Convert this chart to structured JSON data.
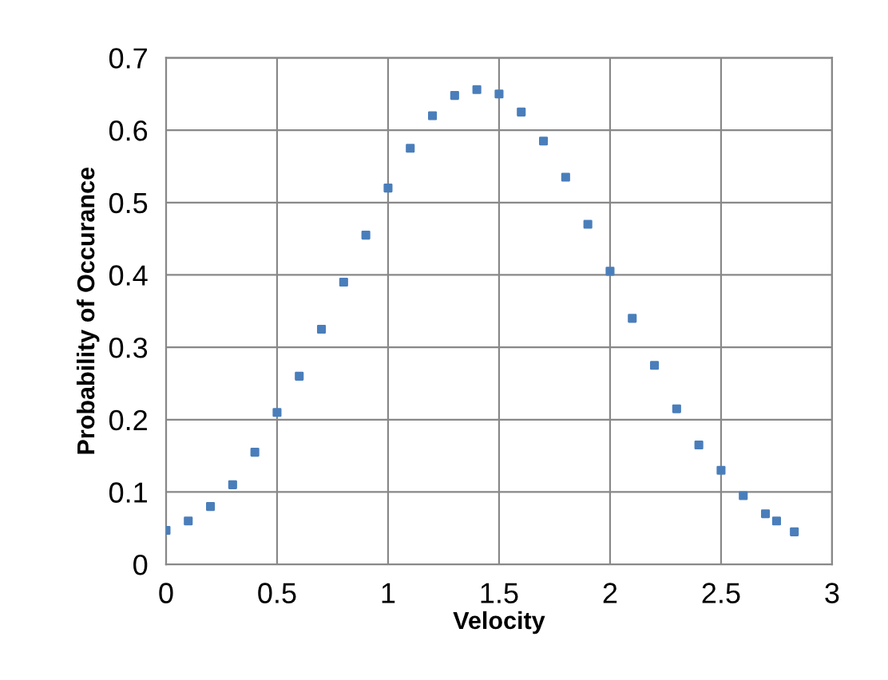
{
  "chart_data": {
    "type": "scatter",
    "xlabel": "Velocity",
    "ylabel": "Probability of Occurance",
    "x": [
      0,
      0.1,
      0.2,
      0.3,
      0.4,
      0.5,
      0.6,
      0.7,
      0.8,
      0.9,
      1.0,
      1.1,
      1.2,
      1.3,
      1.4,
      1.5,
      1.6,
      1.7,
      1.8,
      1.9,
      2.0,
      2.1,
      2.2,
      2.3,
      2.4,
      2.5,
      2.6,
      2.7,
      2.75,
      2.83
    ],
    "series": [
      {
        "color": "#4a7ebb",
        "values": [
          0.047,
          0.06,
          0.08,
          0.11,
          0.155,
          0.21,
          0.26,
          0.325,
          0.39,
          0.455,
          0.52,
          0.575,
          0.62,
          0.648,
          0.656,
          0.65,
          0.625,
          0.585,
          0.535,
          0.47,
          0.405,
          0.34,
          0.275,
          0.215,
          0.165,
          0.13,
          0.095,
          0.07,
          0.06,
          0.045
        ]
      }
    ],
    "xlim": [
      0,
      3
    ],
    "xticks": [
      0,
      0.5,
      1,
      1.5,
      2,
      2.5,
      3
    ],
    "ylim": [
      0,
      0.7
    ],
    "yticks": [
      0,
      0.1,
      0.2,
      0.3,
      0.4,
      0.5,
      0.6,
      0.7
    ],
    "grid": true,
    "marker": "square"
  }
}
